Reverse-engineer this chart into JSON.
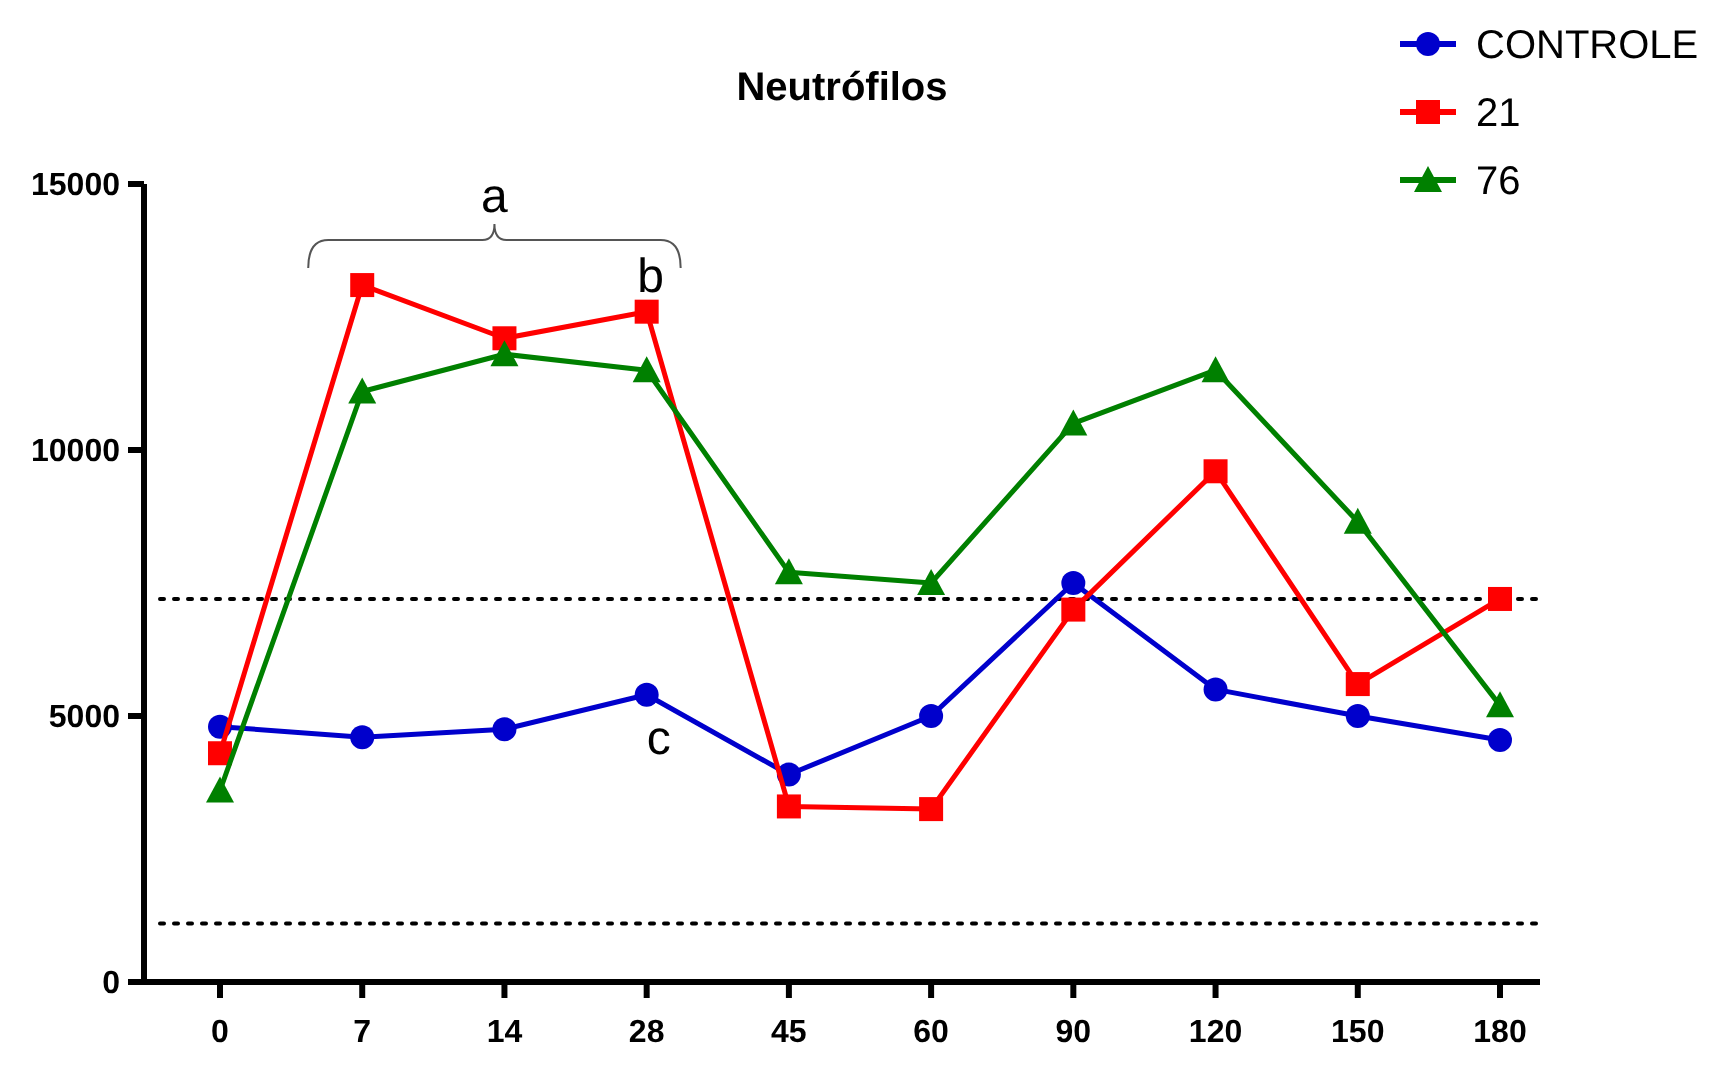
{
  "chart_data": {
    "type": "line",
    "title": "Neutrófilos",
    "categories": [
      "0",
      "7",
      "14",
      "28",
      "45",
      "60",
      "90",
      "120",
      "150",
      "180"
    ],
    "series": [
      {
        "name": "CONTROLE",
        "color": "#0000cc",
        "marker": "circle",
        "values": [
          4800,
          4600,
          4750,
          5400,
          3900,
          5000,
          7500,
          5500,
          5000,
          4550
        ]
      },
      {
        "name": "21",
        "color": "#ff0000",
        "marker": "square",
        "values": [
          4300,
          13100,
          12100,
          12600,
          3300,
          3250,
          7000,
          9600,
          5600,
          7200
        ]
      },
      {
        "name": "76",
        "color": "#008000",
        "marker": "triangle",
        "values": [
          3600,
          11100,
          11800,
          11500,
          7700,
          7500,
          10500,
          11500,
          8650,
          5200
        ]
      }
    ],
    "ylim": [
      0,
      15000
    ],
    "yticks": [
      0,
      5000,
      10000,
      15000
    ],
    "grid": false,
    "legend": "top right",
    "line_style": "solid",
    "ref_lines": [
      {
        "axis": "y",
        "value": 7200,
        "line_style": "dotted",
        "color": "#000000"
      },
      {
        "axis": "y",
        "value": 1100,
        "line_style": "dotted",
        "color": "#000000"
      }
    ],
    "annotations": [
      "a",
      "b",
      "c"
    ]
  }
}
